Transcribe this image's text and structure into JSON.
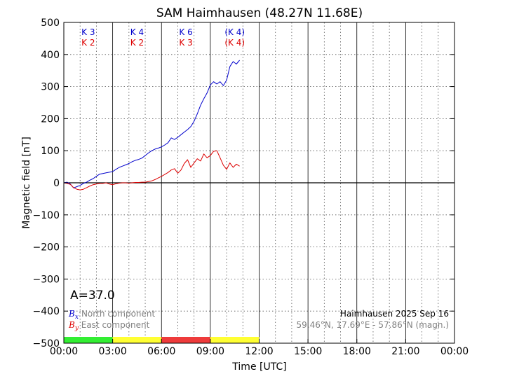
{
  "chart_data": {
    "type": "line",
    "title": "SAM Haimhausen (48.27N 11.68E)",
    "xlabel": "Time [UTC]",
    "ylabel": "Magnetic field [nT]",
    "xlim_hours": [
      0,
      24
    ],
    "ylim": [
      -500,
      500
    ],
    "x_tick_labels": [
      "00:00",
      "03:00",
      "06:00",
      "09:00",
      "12:00",
      "15:00",
      "18:00",
      "21:00",
      "00:00"
    ],
    "y_ticks": [
      500,
      400,
      300,
      200,
      100,
      0,
      -100,
      -200,
      -300,
      -400,
      -500
    ],
    "y_tick_labels": [
      "500",
      "400",
      "300",
      "200",
      "100",
      "0",
      "−100",
      "−200",
      "−300",
      "−400",
      "−500"
    ],
    "grid": true,
    "series": [
      {
        "name": "North component",
        "symbol": "B",
        "subscript": "x",
        "color": "#0000cc",
        "x_hours": [
          0.0,
          0.2,
          0.4,
          0.6,
          0.8,
          1.0,
          1.2,
          1.4,
          1.6,
          1.8,
          2.0,
          2.2,
          2.4,
          2.6,
          2.8,
          3.0,
          3.2,
          3.4,
          3.6,
          3.8,
          4.0,
          4.2,
          4.4,
          4.6,
          4.8,
          5.0,
          5.2,
          5.4,
          5.6,
          5.8,
          6.0,
          6.2,
          6.4,
          6.6,
          6.8,
          7.0,
          7.2,
          7.4,
          7.6,
          7.8,
          8.0,
          8.2,
          8.4,
          8.6,
          8.8,
          9.0,
          9.2,
          9.4,
          9.6,
          9.8,
          10.0,
          10.2,
          10.4,
          10.6,
          10.8
        ],
        "values": [
          0,
          2,
          -4,
          -16,
          -12,
          -8,
          -2,
          2,
          8,
          13,
          20,
          27,
          29,
          31,
          33,
          35,
          42,
          48,
          52,
          56,
          60,
          66,
          70,
          73,
          77,
          85,
          93,
          100,
          105,
          108,
          112,
          118,
          125,
          140,
          135,
          142,
          150,
          158,
          166,
          175,
          192,
          215,
          242,
          262,
          280,
          305,
          315,
          308,
          315,
          303,
          320,
          362,
          378,
          370,
          382
        ]
      },
      {
        "name": "East component",
        "symbol": "B",
        "subscript": "y",
        "color": "#dd0000",
        "x_hours": [
          0.0,
          0.2,
          0.4,
          0.6,
          0.8,
          1.0,
          1.2,
          1.4,
          1.6,
          1.8,
          2.0,
          2.2,
          2.4,
          2.6,
          2.8,
          3.0,
          3.2,
          3.4,
          3.6,
          3.8,
          4.0,
          4.2,
          4.4,
          4.6,
          4.8,
          5.0,
          5.2,
          5.4,
          5.6,
          5.8,
          6.0,
          6.2,
          6.4,
          6.6,
          6.8,
          7.0,
          7.2,
          7.4,
          7.6,
          7.8,
          8.0,
          8.2,
          8.4,
          8.6,
          8.8,
          9.0,
          9.2,
          9.4,
          9.6,
          9.8,
          10.0,
          10.2,
          10.4,
          10.6,
          10.8
        ],
        "values": [
          0,
          -2,
          -5,
          -15,
          -20,
          -22,
          -20,
          -15,
          -10,
          -6,
          -4,
          -2,
          -2,
          0,
          -4,
          -6,
          -3,
          -1,
          0,
          0,
          -1,
          0,
          1,
          1,
          2,
          2,
          4,
          6,
          10,
          15,
          20,
          26,
          32,
          40,
          44,
          30,
          40,
          60,
          72,
          48,
          62,
          75,
          68,
          90,
          78,
          85,
          98,
          100,
          78,
          55,
          42,
          62,
          48,
          58,
          52
        ]
      }
    ],
    "k_indices": [
      {
        "north": "K 3",
        "east": "K 2",
        "x_hours": 1.5
      },
      {
        "north": "K 4",
        "east": "K 2",
        "x_hours": 4.5
      },
      {
        "north": "K 6",
        "east": "K 3",
        "x_hours": 7.5
      },
      {
        "north": "(K 4)",
        "east": "(K 4)",
        "x_hours": 10.5
      }
    ],
    "activity_bar": [
      {
        "start": 0,
        "end": 3,
        "color": "#33ee33"
      },
      {
        "start": 3,
        "end": 6,
        "color": "#ffff33"
      },
      {
        "start": 6,
        "end": 9,
        "color": "#ee3b3b"
      },
      {
        "start": 9,
        "end": 12,
        "color": "#ffff33"
      }
    ],
    "a_index": "A=37.0",
    "station_date": "Haimhausen 2025 Sep 16",
    "coordinates": "59.46°N, 17.69°E - 57.86°N (magn.)"
  }
}
